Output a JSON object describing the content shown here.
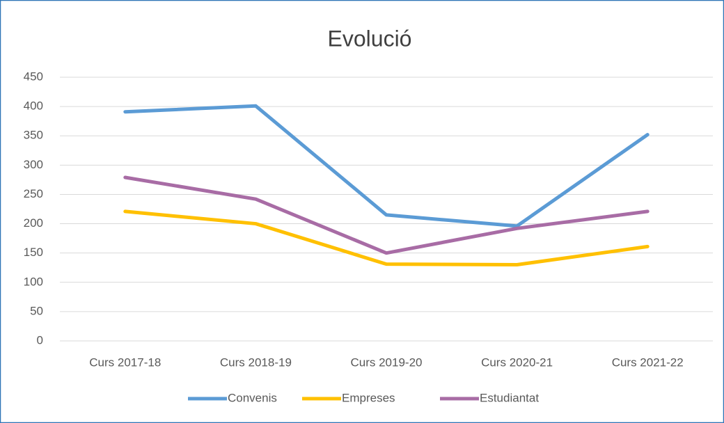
{
  "chart_data": {
    "type": "line",
    "title": "Evolució",
    "categories": [
      "Curs 2017-18",
      "Curs 2018-19",
      "Curs 2019-20",
      "Curs 2020-21",
      "Curs 2021-22"
    ],
    "series": [
      {
        "name": "Convenis",
        "color": "#5b9bd5",
        "values": [
          391,
          401,
          215,
          196,
          352
        ]
      },
      {
        "name": "Empreses",
        "color": "#ffc000",
        "values": [
          221,
          200,
          131,
          130,
          161
        ]
      },
      {
        "name": "Estudiantat",
        "color": "#a86ca5",
        "values": [
          279,
          242,
          150,
          192,
          221
        ]
      }
    ],
    "ylim": [
      0,
      450
    ],
    "yticks": [
      0,
      50,
      100,
      150,
      200,
      250,
      300,
      350,
      400,
      450
    ],
    "grid": true,
    "legend": "bottom"
  }
}
